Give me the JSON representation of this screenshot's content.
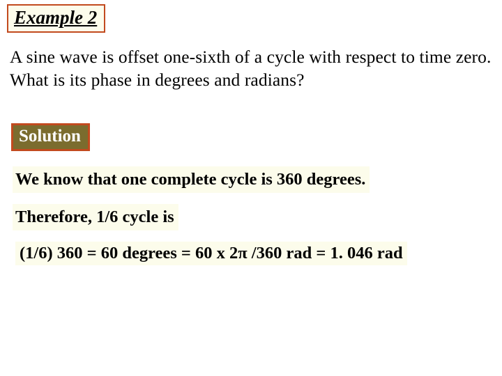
{
  "title": {
    "text": "Example 2",
    "border_color": "#c24a1e",
    "bg_color": "#fcfceb"
  },
  "problem": {
    "text": "A sine wave is offset one-sixth of a cycle with respect to time zero. What is its phase in degrees and radians?",
    "color": "#000000"
  },
  "solution_label": {
    "text": "Solution",
    "border_color": "#c24a1e",
    "bg_color": "#7b6c2e",
    "text_color": "#ffffff"
  },
  "answer": {
    "line1": "We know that one complete cycle is 360 degrees.",
    "line2": "Therefore, 1/6 cycle is",
    "equation": "(1/6) 360 = 60 degrees = 60 x 2π /360 rad = 1. 046 rad",
    "bg_color": "#fcfceb",
    "text_color": "#000000"
  }
}
